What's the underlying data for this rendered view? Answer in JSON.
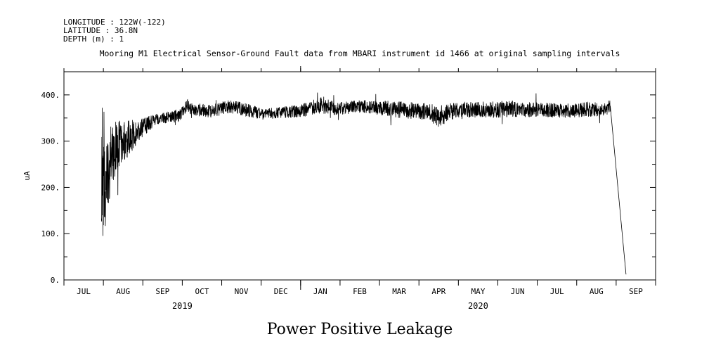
{
  "header": {
    "longitude": "LONGITUDE : 122W(-122)",
    "latitude": "LATITUDE : 36.8N",
    "depth": "DEPTH (m) : 1"
  },
  "chart_data": {
    "type": "line",
    "title": "Mooring M1 Electrical Sensor-Ground Fault data from MBARI instrument id 1466 at original sampling intervals",
    "footer_title": "Power Positive Leakage",
    "ylabel": "uA",
    "xlabel": "",
    "ylim": [
      0,
      450
    ],
    "yticks": [
      0,
      100,
      200,
      300,
      400
    ],
    "ytick_labels": [
      "0.",
      "100.",
      "200.",
      "300.",
      "400."
    ],
    "xlim": [
      0,
      15
    ],
    "months": [
      {
        "label": "JUL",
        "x": 0.5
      },
      {
        "label": "AUG",
        "x": 1.5
      },
      {
        "label": "SEP",
        "x": 2.5
      },
      {
        "label": "OCT",
        "x": 3.5
      },
      {
        "label": "NOV",
        "x": 4.5
      },
      {
        "label": "DEC",
        "x": 5.5
      },
      {
        "label": "JAN",
        "x": 6.5
      },
      {
        "label": "FEB",
        "x": 7.5
      },
      {
        "label": "MAR",
        "x": 8.5
      },
      {
        "label": "APR",
        "x": 9.5
      },
      {
        "label": "MAY",
        "x": 10.5
      },
      {
        "label": "JUN",
        "x": 11.5
      },
      {
        "label": "JUL",
        "x": 12.5
      },
      {
        "label": "AUG",
        "x": 13.5
      },
      {
        "label": "SEP",
        "x": 14.5
      }
    ],
    "month_boundaries": [
      0,
      1,
      2,
      3,
      4,
      5,
      6,
      7,
      8,
      9,
      10,
      11,
      12,
      13,
      14,
      15
    ],
    "years": [
      {
        "label": "2019",
        "x": 3.0
      },
      {
        "label": "2020",
        "x": 10.5
      }
    ],
    "year_boundary": 6,
    "series": [
      {
        "name": "Power Positive Leakage",
        "x": [
          0.95,
          0.97,
          1.0,
          1.05,
          1.1,
          1.2,
          1.35,
          1.5,
          1.7,
          1.9,
          2.1,
          2.3,
          2.5,
          2.7,
          2.9,
          3.0,
          3.1,
          3.3,
          3.6,
          3.9,
          4.2,
          4.5,
          4.8,
          5.0,
          5.5,
          6.0,
          6.5,
          6.9,
          7.2,
          7.5,
          8.0,
          8.5,
          9.0,
          9.3,
          9.5,
          9.8,
          10.2,
          10.8,
          11.4,
          12.0,
          12.6,
          13.2,
          13.6,
          13.85,
          14.25
        ],
        "mean": [
          250,
          200,
          180,
          210,
          230,
          270,
          290,
          300,
          310,
          325,
          335,
          345,
          350,
          352,
          355,
          360,
          378,
          368,
          366,
          368,
          375,
          370,
          364,
          358,
          362,
          365,
          378,
          370,
          372,
          375,
          372,
          368,
          365,
          362,
          350,
          365,
          366,
          368,
          370,
          368,
          366,
          368,
          370,
          372,
          12
        ],
        "spread": [
          120,
          120,
          110,
          100,
          90,
          70,
          55,
          45,
          35,
          25,
          18,
          14,
          12,
          12,
          14,
          14,
          14,
          14,
          15,
          14,
          14,
          14,
          14,
          12,
          12,
          14,
          18,
          14,
          14,
          14,
          16,
          18,
          18,
          20,
          22,
          18,
          18,
          18,
          18,
          16,
          16,
          16,
          16,
          16,
          0
        ]
      }
    ]
  }
}
